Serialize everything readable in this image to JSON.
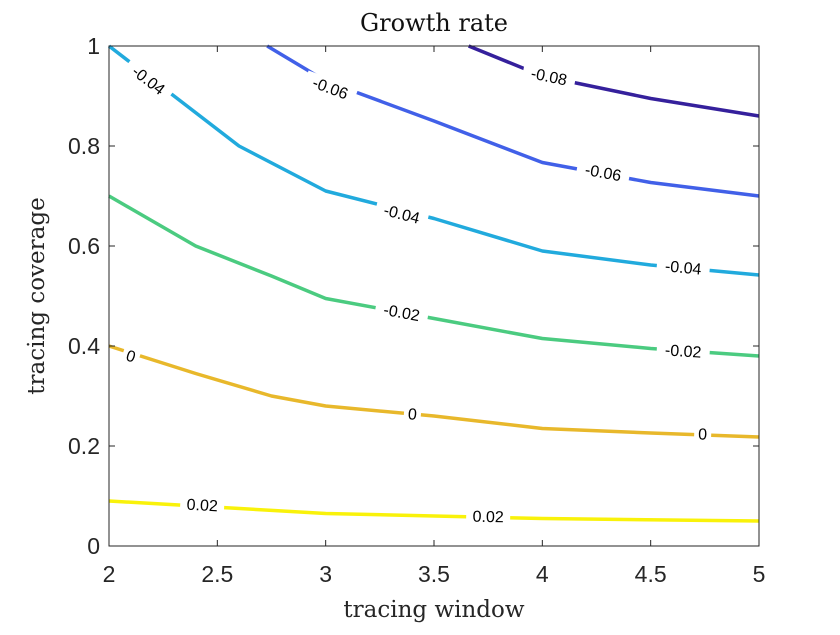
{
  "chart_data": {
    "type": "contour",
    "title": "Growth rate",
    "xlabel": "tracing window",
    "ylabel": "tracing coverage",
    "xlim": [
      2,
      5
    ],
    "ylim": [
      0,
      1
    ],
    "xticks": [
      2,
      2.5,
      3,
      3.5,
      4,
      4.5,
      5
    ],
    "xtick_labels": [
      "2",
      "2.5",
      "3",
      "3.5",
      "4",
      "4.5",
      "5"
    ],
    "yticks": [
      0,
      0.2,
      0.4,
      0.6,
      0.8,
      1
    ],
    "ytick_labels": [
      "0",
      "0.2",
      "0.4",
      "0.6",
      "0.8",
      "1"
    ],
    "grid": false,
    "box": true,
    "contours": [
      {
        "level": 0.02,
        "color": "#f9f20a",
        "points": [
          [
            2,
            0.09
          ],
          [
            3,
            0.065
          ],
          [
            4,
            0.055
          ],
          [
            5,
            0.05
          ]
        ],
        "labels": [
          {
            "text": "0.02",
            "x": 2.43,
            "y": 0.08
          },
          {
            "text": "0.02",
            "x": 3.75,
            "y": 0.057
          }
        ]
      },
      {
        "level": 0,
        "color": "#e8b82b",
        "points": [
          [
            2,
            0.4
          ],
          [
            2.4,
            0.345
          ],
          [
            2.75,
            0.3
          ],
          [
            3,
            0.28
          ],
          [
            3.5,
            0.26
          ],
          [
            4,
            0.235
          ],
          [
            4.5,
            0.226
          ],
          [
            5,
            0.218
          ]
        ],
        "labels": [
          {
            "text": "0",
            "x": 2.1,
            "y": 0.378
          },
          {
            "text": "0",
            "x": 3.4,
            "y": 0.262
          },
          {
            "text": "0",
            "x": 4.74,
            "y": 0.222
          }
        ]
      },
      {
        "level": -0.02,
        "color": "#4bcb80",
        "points": [
          [
            2,
            0.7
          ],
          [
            2.4,
            0.6
          ],
          [
            2.75,
            0.54
          ],
          [
            3,
            0.495
          ],
          [
            3.5,
            0.455
          ],
          [
            4,
            0.415
          ],
          [
            4.5,
            0.395
          ],
          [
            5,
            0.38
          ]
        ],
        "labels": [
          {
            "text": "-0.02",
            "x": 3.35,
            "y": 0.465
          },
          {
            "text": "-0.02",
            "x": 4.65,
            "y": 0.388
          }
        ]
      },
      {
        "level": -0.04,
        "color": "#21aadd",
        "points": [
          [
            2,
            1.0
          ],
          [
            2.3,
            0.9
          ],
          [
            2.6,
            0.8
          ],
          [
            3,
            0.71
          ],
          [
            3.5,
            0.655
          ],
          [
            4,
            0.59
          ],
          [
            4.5,
            0.562
          ],
          [
            5,
            0.542
          ]
        ],
        "labels": [
          {
            "text": "-0.04",
            "x": 2.18,
            "y": 0.93
          },
          {
            "text": "-0.04",
            "x": 3.35,
            "y": 0.662
          },
          {
            "text": "-0.04",
            "x": 4.65,
            "y": 0.555
          }
        ]
      },
      {
        "level": -0.06,
        "color": "#4160e8",
        "points": [
          [
            2.73,
            1.0
          ],
          [
            3.0,
            0.93
          ],
          [
            3.5,
            0.85
          ],
          [
            4,
            0.767
          ],
          [
            4.5,
            0.727
          ],
          [
            5,
            0.7
          ]
        ],
        "labels": [
          {
            "text": "-0.06",
            "x": 3.02,
            "y": 0.914
          },
          {
            "text": "-0.06",
            "x": 4.28,
            "y": 0.745
          }
        ]
      },
      {
        "level": -0.08,
        "color": "#35209c",
        "points": [
          [
            3.66,
            1.0
          ],
          [
            4,
            0.94
          ],
          [
            4.5,
            0.895
          ],
          [
            5,
            0.86
          ]
        ],
        "labels": [
          {
            "text": "-0.08",
            "x": 4.03,
            "y": 0.937
          }
        ]
      }
    ]
  }
}
